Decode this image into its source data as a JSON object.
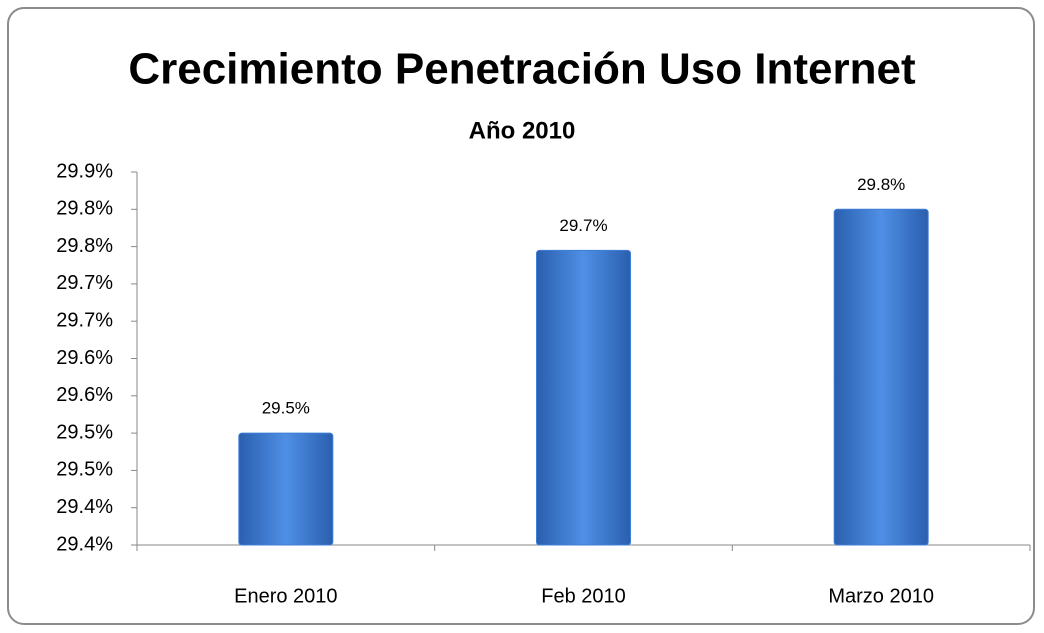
{
  "chart_data": {
    "type": "bar",
    "title": "Crecimiento Penetración Uso Internet",
    "subtitle": "Año 2010",
    "categories": [
      "Enero 2010",
      "Feb 2010",
      "Marzo 2010"
    ],
    "values": [
      29.5,
      29.745,
      29.8
    ],
    "value_labels": [
      "29.5%",
      "29.7%",
      "29.8%"
    ],
    "color": "#3f7fd6",
    "ylim": [
      29.35,
      29.85
    ],
    "yticks": [
      {
        "value": 29.35,
        "label": "29.4%"
      },
      {
        "value": 29.4,
        "label": "29.4%"
      },
      {
        "value": 29.45,
        "label": "29.5%"
      },
      {
        "value": 29.5,
        "label": "29.5%"
      },
      {
        "value": 29.55,
        "label": "29.6%"
      },
      {
        "value": 29.6,
        "label": "29.6%"
      },
      {
        "value": 29.65,
        "label": "29.7%"
      },
      {
        "value": 29.7,
        "label": "29.7%"
      },
      {
        "value": 29.75,
        "label": "29.8%"
      },
      {
        "value": 29.8,
        "label": "29.8%"
      },
      {
        "value": 29.85,
        "label": "29.9%"
      }
    ],
    "grid": false
  }
}
